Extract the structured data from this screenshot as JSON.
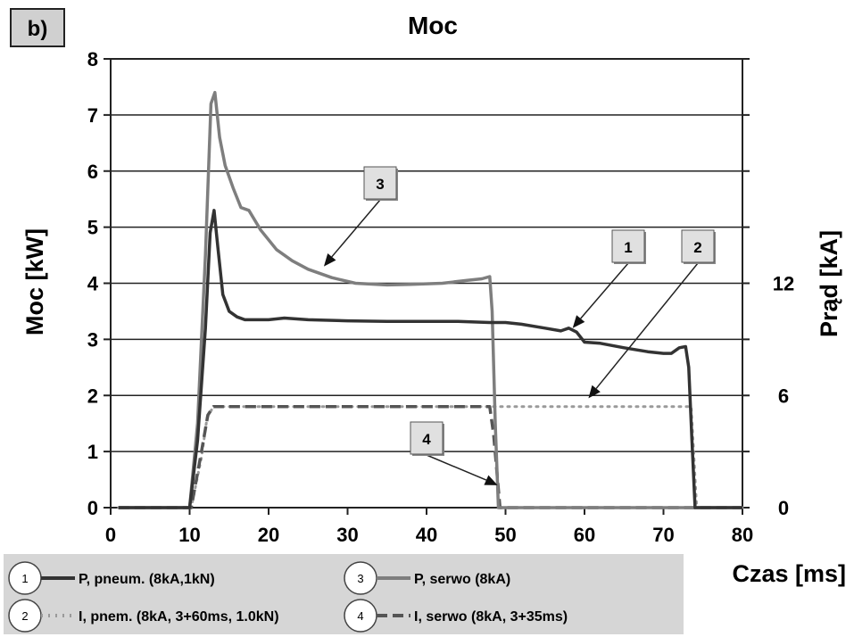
{
  "chart_data": {
    "type": "line",
    "title": "Moc",
    "panel_label": "b)",
    "xlabel": "Czas [ms]",
    "ylabel": "Moc  [kW]",
    "y2label": "Prąd  [kA]",
    "xlim": [
      0,
      80
    ],
    "ylim": [
      0,
      8
    ],
    "y2lim": [
      0,
      24
    ],
    "x_ticks": [
      "0",
      "10",
      "20",
      "30",
      "40",
      "50",
      "60",
      "70",
      "80"
    ],
    "y_ticks": [
      "0",
      "1",
      "2",
      "3",
      "4",
      "5",
      "6",
      "7",
      "8"
    ],
    "y2_ticks": [
      "0",
      "6",
      "12"
    ],
    "grid": "horizontal",
    "series": [
      {
        "id": "1",
        "name": "P, pneum. (8kA,1kN)",
        "axis": "left",
        "style": "solid",
        "color": "#333333",
        "x": [
          1,
          10,
          11,
          12,
          12.6,
          13.1,
          13.6,
          14.2,
          15,
          16,
          17,
          18,
          20,
          22,
          25,
          30,
          35,
          40,
          44,
          48,
          50,
          52,
          55,
          57,
          58,
          59,
          60,
          62,
          65,
          68,
          70,
          71,
          72,
          72.8,
          73.2,
          73.6,
          74,
          80
        ],
        "y": [
          0,
          0,
          1.2,
          3.2,
          4.9,
          5.3,
          4.6,
          3.8,
          3.5,
          3.4,
          3.35,
          3.35,
          3.35,
          3.38,
          3.35,
          3.33,
          3.32,
          3.32,
          3.32,
          3.3,
          3.3,
          3.27,
          3.2,
          3.15,
          3.2,
          3.13,
          2.95,
          2.93,
          2.85,
          2.78,
          2.75,
          2.75,
          2.85,
          2.87,
          2.5,
          1.2,
          0,
          0
        ]
      },
      {
        "id": "2",
        "name": "I, pnem. (8kA, 3+60ms, 1.0kN)",
        "axis": "left",
        "style": "dotted",
        "color": "#9a9a9a",
        "x": [
          1,
          10.2,
          11.5,
          12.2,
          13,
          20,
          30,
          40,
          48,
          50,
          55,
          60,
          65,
          70,
          73.5,
          74.2,
          80
        ],
        "y": [
          0,
          0,
          0.9,
          1.6,
          1.8,
          1.8,
          1.8,
          1.8,
          1.8,
          1.8,
          1.8,
          1.8,
          1.8,
          1.8,
          1.8,
          0,
          0
        ]
      },
      {
        "id": "3",
        "name": "P, serwo (8kA)",
        "axis": "left",
        "style": "solid",
        "color": "#7e7e7e",
        "x": [
          1,
          10,
          11,
          12,
          12.7,
          13.2,
          13.8,
          14.5,
          15.5,
          16.5,
          17.5,
          19,
          21,
          23,
          25,
          28,
          31,
          35,
          38,
          42,
          45,
          47,
          48,
          48.3,
          48.7,
          49.1,
          80
        ],
        "y": [
          0,
          0,
          1.5,
          4.5,
          7.2,
          7.4,
          6.6,
          6.1,
          5.7,
          5.35,
          5.3,
          4.95,
          4.6,
          4.4,
          4.25,
          4.1,
          4.0,
          3.97,
          3.98,
          4.0,
          4.05,
          4.08,
          4.12,
          3.5,
          1.5,
          0,
          0
        ]
      },
      {
        "id": "4",
        "name": "I, serwo (8kA, 3+35ms)",
        "axis": "left",
        "style": "dashed",
        "color": "#555555",
        "x": [
          1,
          10.2,
          11.5,
          12.3,
          13,
          20,
          30,
          40,
          48,
          48.5,
          49.3,
          80
        ],
        "y": [
          0,
          0,
          1.0,
          1.65,
          1.8,
          1.8,
          1.8,
          1.8,
          1.8,
          1.3,
          0,
          0
        ]
      }
    ],
    "callouts": [
      {
        "label": "3",
        "x": 27,
        "y": 4.3
      },
      {
        "label": "1",
        "x": 58.5,
        "y": 3.2
      },
      {
        "label": "2",
        "x": 60.5,
        "y": 1.95
      },
      {
        "label": "4",
        "x": 49,
        "y": 0.4
      }
    ],
    "legend": {
      "placement": "bottom",
      "entries": [
        {
          "num": "1",
          "text": "P, pneum. (8kA,1kN)"
        },
        {
          "num": "3",
          "text": "P, serwo (8kA)"
        },
        {
          "num": "2",
          "text": "I, pnem. (8kA, 3+60ms, 1.0kN)"
        },
        {
          "num": "4",
          "text": "I, serwo (8kA, 3+35ms)"
        }
      ]
    }
  }
}
